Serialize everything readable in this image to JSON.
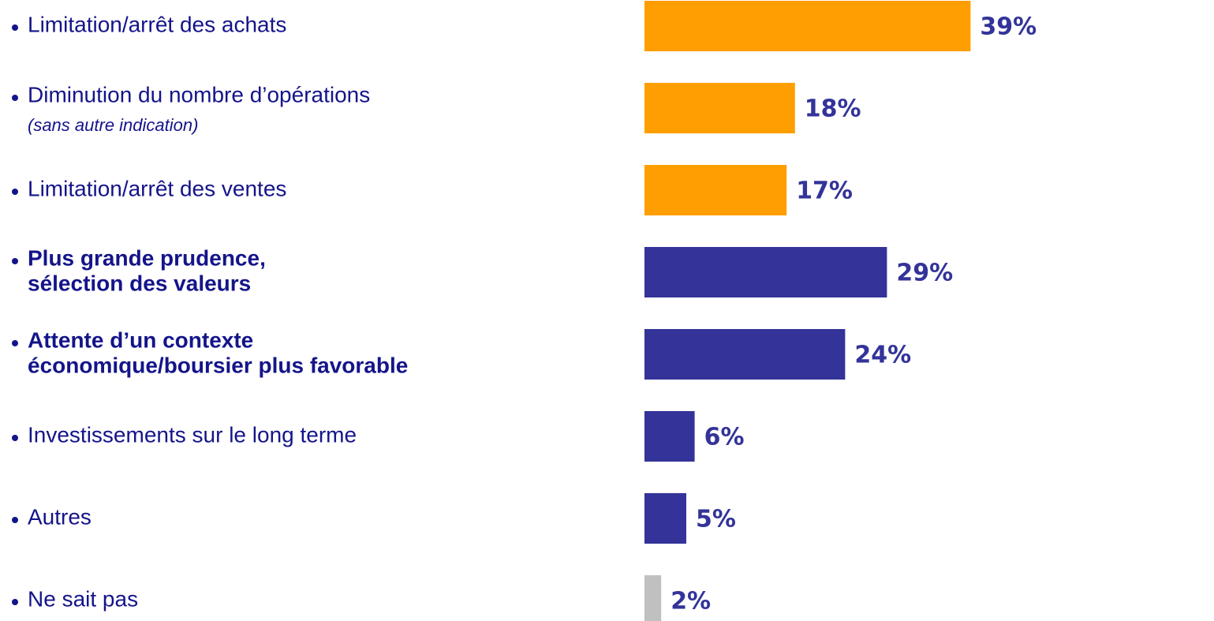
{
  "chart_data": {
    "type": "barh",
    "categories": [
      [
        "Limitation/arrêt des achats"
      ],
      [
        "Diminution du nombre d’opérations"
      ],
      [
        "Limitation/arrêt des ventes"
      ],
      [
        "Plus grande prudence,",
        "sélection des valeurs"
      ],
      [
        "Attente d’un contexte",
        "économique/boursier plus favorable"
      ],
      [
        "Investissements sur le long terme"
      ],
      [
        "Autres"
      ],
      [
        "Ne sait pas"
      ]
    ],
    "category_notes": [
      null,
      "(sans autre indication)",
      null,
      null,
      null,
      null,
      null,
      null
    ],
    "bold_categories": [
      false,
      false,
      false,
      true,
      true,
      false,
      false,
      false
    ],
    "values": [
      39,
      18,
      17,
      29,
      24,
      6,
      5,
      2
    ],
    "value_labels": [
      "39%",
      "18%",
      "17%",
      "29%",
      "24%",
      "6%",
      "5%",
      "2%"
    ],
    "colors": [
      "#ff9e00",
      "#ff9e00",
      "#ff9e00",
      "#333399",
      "#333399",
      "#333399",
      "#333399",
      "#c0c0c0"
    ]
  }
}
